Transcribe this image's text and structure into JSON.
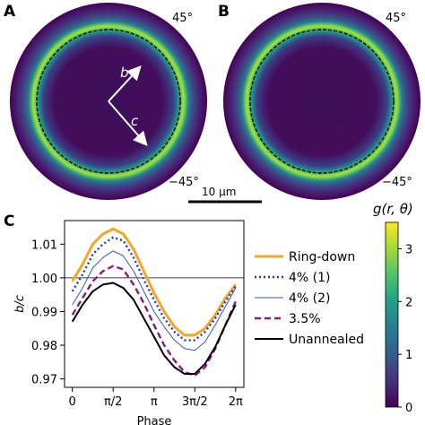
{
  "panels": {
    "a_label": "A",
    "b_label": "B",
    "c_label": "C"
  },
  "images": {
    "angle_top": "45°",
    "angle_bottom": "−45°",
    "arrow_b": "b",
    "arrow_c": "c",
    "scalebar_label": "10 μm"
  },
  "colorbar": {
    "label": "g(r, θ)",
    "colormap": "viridis",
    "ticks": [
      "0",
      "1",
      "2",
      "3"
    ],
    "tick_values": [
      0,
      1,
      2,
      3
    ],
    "range": [
      0,
      3.5
    ]
  },
  "colors": {
    "ring_down": "#f5a623",
    "four_pct_1": "#1a35c8",
    "four_pct_2": "#3653d4",
    "three_five_pct": "#8b1a7a",
    "unannealed": "#000000"
  },
  "chart_data": {
    "type": "line",
    "xlabel": "Phase",
    "ylabel": "b/c",
    "x_tick_labels": [
      "0",
      "π/2",
      "π",
      "3π/2",
      "2π"
    ],
    "x_tick_values": [
      0,
      1.5708,
      3.1416,
      4.7124,
      6.2832
    ],
    "y_tick_labels": [
      "0.97",
      "0.98",
      "0.99",
      "1.00",
      "1.01"
    ],
    "y_tick_values": [
      0.97,
      0.98,
      0.99,
      1.0,
      1.01
    ],
    "xlim": [
      -0.3,
      6.6
    ],
    "ylim": [
      0.9675,
      1.017
    ],
    "reference_line": 1.0,
    "legend_position": "right",
    "x": [
      0,
      0.3927,
      0.7854,
      1.1781,
      1.5708,
      1.9635,
      2.3562,
      2.7489,
      3.1416,
      3.5343,
      3.927,
      4.3197,
      4.7124,
      5.1051,
      5.4978,
      5.8905,
      6.2832
    ],
    "series": [
      {
        "name": "Ring-down",
        "style": "solid-thick",
        "values": [
          0.999,
          1.004,
          1.01,
          1.013,
          1.0145,
          1.013,
          1.0085,
          1.002,
          0.9955,
          0.99,
          0.9855,
          0.983,
          0.983,
          0.985,
          0.989,
          0.994,
          0.998
        ]
      },
      {
        "name": "4% (1)",
        "style": "dotted",
        "values": [
          0.996,
          1.001,
          1.007,
          1.01,
          1.012,
          1.011,
          1.006,
          0.9995,
          0.9935,
          0.988,
          0.984,
          0.9815,
          0.9815,
          0.984,
          0.988,
          0.993,
          0.9975
        ]
      },
      {
        "name": "4% (2)",
        "style": "solid-thin",
        "values": [
          0.992,
          0.997,
          1.003,
          1.006,
          1.008,
          1.0065,
          1.002,
          0.996,
          0.99,
          0.9855,
          0.9815,
          0.979,
          0.9785,
          0.981,
          0.986,
          0.9915,
          0.997
        ]
      },
      {
        "name": "3.5%",
        "style": "dashed",
        "values": [
          0.989,
          0.994,
          0.999,
          1.002,
          1.0035,
          1.0025,
          0.998,
          0.9925,
          0.986,
          0.98,
          0.9755,
          0.972,
          0.971,
          0.9735,
          0.979,
          0.986,
          0.993
        ]
      },
      {
        "name": "Unannealed",
        "style": "solid",
        "values": [
          0.987,
          0.992,
          0.996,
          0.998,
          0.9985,
          0.997,
          0.9935,
          0.988,
          0.9825,
          0.977,
          0.9735,
          0.9715,
          0.9715,
          0.9745,
          0.9795,
          0.986,
          0.992
        ]
      }
    ]
  }
}
